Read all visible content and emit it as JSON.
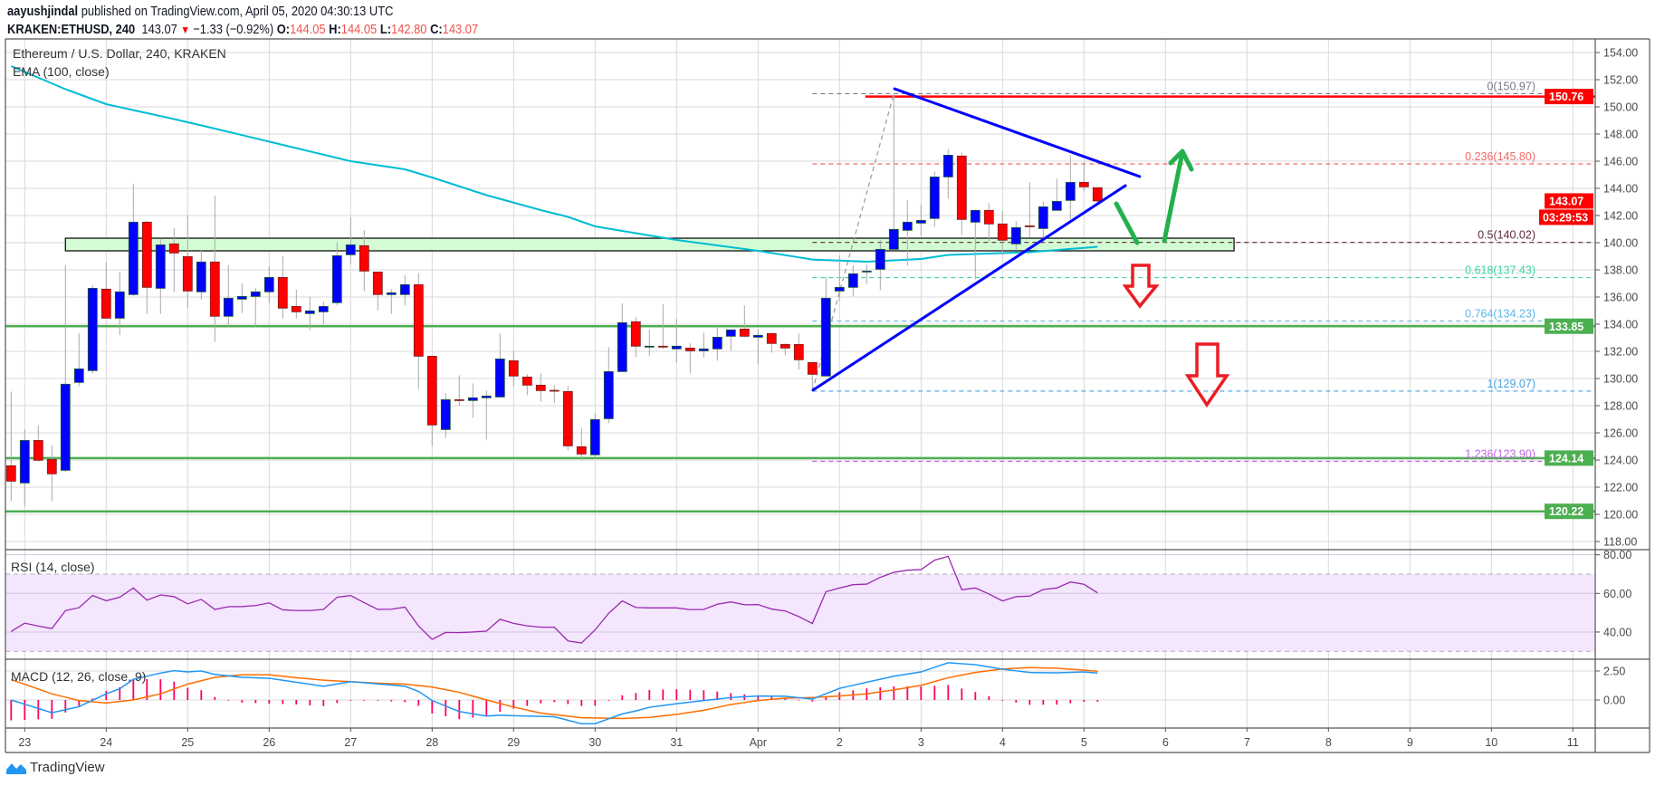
{
  "header": {
    "author": "aayushjindal",
    "published": "published on TradingView.com, April 05, 2020 04:30:13 UTC",
    "symbol": "KRAKEN:ETHUSD, 240",
    "last": "143.07",
    "direction_icon": "triangle-down-icon",
    "change": "−1.33 (−0.92%)",
    "open_label": "O:",
    "open": "144.05",
    "high_label": "H:",
    "high": "144.05",
    "low_label": "L:",
    "low": "142.80",
    "close_label": "C:",
    "close": "143.07"
  },
  "legend": {
    "title": "Ethereum / U.S. Dollar, 240, KRAKEN",
    "ema": "EMA (100, close)",
    "rsi": "RSI (14, close)",
    "macd": "MACD (12, 26, close, 9)"
  },
  "price_axis": {
    "ticks": [
      "154.00",
      "152.00",
      "150.00",
      "148.00",
      "146.00",
      "144.00",
      "142.00",
      "140.00",
      "138.00",
      "136.00",
      "134.00",
      "132.00",
      "130.00",
      "128.00",
      "126.00",
      "124.00",
      "122.00",
      "120.00",
      "118.00"
    ],
    "badges": [
      {
        "label": "150.76",
        "value": 150.76,
        "color": "#ff0000"
      },
      {
        "label": "143.07",
        "value": 143.07,
        "color": "#ff0000"
      },
      {
        "label": "133.85",
        "value": 133.85,
        "color": "#4caf50"
      },
      {
        "label": "124.14",
        "value": 124.14,
        "color": "#4caf50"
      },
      {
        "label": "120.22",
        "value": 120.22,
        "color": "#4caf50"
      }
    ],
    "countdown": "03:29:53"
  },
  "rsi_axis": [
    "80.00",
    "60.00",
    "40.00"
  ],
  "macd_axis": [
    "2.50",
    "0.00"
  ],
  "time_axis": [
    "23",
    "24",
    "25",
    "26",
    "27",
    "28",
    "29",
    "30",
    "31",
    "Apr",
    "2",
    "3",
    "4",
    "5",
    "6",
    "7",
    "8",
    "9",
    "10",
    "11"
  ],
  "logo": "TradingView",
  "colors": {
    "up": "#0000ff",
    "down": "#ff0000",
    "ema": "#00bcd4",
    "rsi": "#9c27b0",
    "macd": "#2196f3",
    "signal": "#ff6d00",
    "histogram": "#ff0061",
    "support": "#4caf50",
    "resistance": "#ff0000",
    "trendline": "#0000ff",
    "zone": "#d4fcd4",
    "arrow_up": "#22b14c",
    "arrow_down": "#ed1c24"
  },
  "chart_data": {
    "type": "candlestick",
    "symbol": "KRAKEN:ETHUSD",
    "interval_minutes": 240,
    "start": "2020-03-22T20:00Z",
    "ylim": [
      117,
      155
    ],
    "grid": true,
    "candles_ohlc": [
      [
        123.58,
        129.04,
        120.98,
        122.44
      ],
      [
        122.31,
        126.27,
        120.58,
        125.44
      ],
      [
        125.44,
        126.53,
        123.9,
        123.98
      ],
      [
        124.04,
        125.07,
        120.98,
        122.98
      ],
      [
        123.24,
        138.33,
        123.1,
        129.58
      ],
      [
        129.71,
        133.33,
        129.42,
        130.71
      ],
      [
        130.58,
        136.87,
        130.36,
        136.64
      ],
      [
        136.58,
        138.53,
        134.4,
        134.44
      ],
      [
        134.44,
        137.87,
        133.2,
        136.38
      ],
      [
        136.18,
        144.33,
        136.1,
        141.51
      ],
      [
        141.51,
        141.6,
        134.76,
        136.71
      ],
      [
        136.64,
        140.31,
        134.76,
        139.84
      ],
      [
        139.91,
        141.07,
        136.36,
        139.24
      ],
      [
        138.98,
        142.04,
        135.2,
        136.44
      ],
      [
        136.38,
        139.44,
        135.82,
        138.58
      ],
      [
        138.58,
        143.47,
        132.69,
        134.58
      ],
      [
        134.58,
        138.33,
        133.76,
        135.91
      ],
      [
        135.84,
        137.0,
        134.82,
        136.04
      ],
      [
        136.04,
        136.67,
        133.76,
        136.38
      ],
      [
        136.38,
        138.27,
        135.53,
        137.44
      ],
      [
        137.44,
        139.0,
        134.42,
        135.18
      ],
      [
        135.31,
        136.53,
        134.42,
        134.91
      ],
      [
        134.78,
        136.02,
        133.56,
        134.98
      ],
      [
        134.91,
        135.67,
        134.02,
        135.31
      ],
      [
        135.58,
        140.04,
        135.38,
        139.04
      ],
      [
        139.11,
        141.87,
        138.42,
        139.84
      ],
      [
        139.78,
        140.93,
        136.42,
        137.91
      ],
      [
        137.84,
        137.84,
        135.02,
        136.18
      ],
      [
        136.18,
        136.58,
        134.76,
        136.31
      ],
      [
        136.18,
        137.6,
        135.38,
        136.91
      ],
      [
        136.91,
        137.78,
        129.24,
        131.64
      ],
      [
        131.64,
        131.64,
        125.04,
        126.58
      ],
      [
        126.24,
        128.91,
        125.64,
        128.44
      ],
      [
        128.44,
        130.24,
        127.98,
        128.38
      ],
      [
        128.38,
        129.64,
        127.11,
        128.58
      ],
      [
        128.58,
        129.11,
        125.51,
        128.71
      ],
      [
        128.64,
        133.31,
        128.6,
        131.44
      ],
      [
        131.31,
        132.04,
        129.44,
        130.18
      ],
      [
        130.11,
        130.31,
        128.78,
        129.51
      ],
      [
        129.51,
        130.38,
        128.31,
        129.11
      ],
      [
        129.13,
        129.51,
        128.18,
        129.09
      ],
      [
        129.04,
        129.44,
        124.71,
        125.04
      ],
      [
        124.98,
        126.38,
        123.98,
        124.44
      ],
      [
        124.38,
        127.44,
        124.09,
        126.98
      ],
      [
        127.04,
        132.31,
        126.71,
        130.51
      ],
      [
        130.51,
        135.53,
        130.5,
        134.11
      ],
      [
        134.18,
        134.51,
        131.58,
        132.38
      ],
      [
        132.31,
        133.6,
        131.64,
        132.38
      ],
      [
        132.38,
        135.47,
        132.18,
        132.31
      ],
      [
        132.18,
        134.38,
        131.18,
        132.38
      ],
      [
        132.24,
        132.58,
        130.38,
        132.04
      ],
      [
        132.04,
        133.38,
        131.51,
        132.18
      ],
      [
        132.18,
        133.84,
        131.31,
        133.04
      ],
      [
        133.11,
        133.6,
        132.04,
        133.58
      ],
      [
        133.64,
        135.38,
        133.04,
        133.11
      ],
      [
        133.04,
        133.58,
        131.04,
        133.18
      ],
      [
        133.31,
        133.38,
        131.91,
        132.58
      ],
      [
        132.51,
        132.58,
        131.71,
        132.24
      ],
      [
        132.51,
        133.31,
        130.64,
        131.38
      ],
      [
        131.18,
        131.18,
        129.07,
        130.31
      ],
      [
        130.18,
        137.44,
        130.18,
        135.91
      ],
      [
        136.44,
        139.04,
        135.71,
        136.71
      ],
      [
        136.71,
        138.31,
        136.04,
        137.71
      ],
      [
        137.84,
        138.38,
        136.98,
        137.91
      ],
      [
        138.04,
        140.18,
        136.51,
        139.51
      ],
      [
        139.51,
        150.97,
        139.5,
        140.98
      ],
      [
        140.91,
        143.11,
        138.31,
        141.51
      ],
      [
        141.44,
        142.8,
        140.51,
        141.64
      ],
      [
        141.78,
        145.24,
        141.16,
        144.84
      ],
      [
        144.84,
        146.91,
        143.24,
        146.44
      ],
      [
        146.38,
        146.64,
        140.58,
        141.71
      ],
      [
        141.51,
        142.44,
        137.31,
        142.38
      ],
      [
        142.38,
        142.91,
        140.04,
        141.38
      ],
      [
        141.38,
        142.31,
        139.11,
        140.18
      ],
      [
        139.91,
        141.58,
        139.51,
        141.11
      ],
      [
        141.24,
        144.44,
        140.38,
        141.2
      ],
      [
        141.04,
        143.04,
        140.38,
        142.64
      ],
      [
        142.38,
        144.71,
        142.38,
        143.04
      ],
      [
        143.11,
        146.44,
        141.71,
        144.44
      ],
      [
        144.44,
        145.91,
        143.78,
        144.11
      ],
      [
        144.05,
        144.05,
        142.8,
        143.07
      ]
    ],
    "ema100": [
      [
        "2020-03-22T20:00Z",
        153.0
      ],
      [
        "2020-03-23T12:00Z",
        151.3
      ],
      [
        "2020-03-24T00:00Z",
        150.2
      ],
      [
        "2020-03-24T20:00Z",
        149.1
      ],
      [
        "2020-03-25T08:00Z",
        148.4
      ],
      [
        "2020-03-26T04:00Z",
        147.2
      ],
      [
        "2020-03-27T00:00Z",
        146.0
      ],
      [
        "2020-03-27T16:00Z",
        145.4
      ],
      [
        "2020-03-28T00:00Z",
        144.8
      ],
      [
        "2020-03-28T16:00Z",
        143.5
      ],
      [
        "2020-03-29T08:00Z",
        142.4
      ],
      [
        "2020-03-29T16:00Z",
        141.9
      ],
      [
        "2020-03-30T00:00Z",
        141.2
      ],
      [
        "2020-03-31T00:00Z",
        140.2
      ],
      [
        "2020-04-01T00:00Z",
        139.4
      ],
      [
        "2020-04-01T16:00Z",
        138.76
      ],
      [
        "2020-04-02T08:00Z",
        138.6
      ],
      [
        "2020-04-03T00:00Z",
        138.8
      ],
      [
        "2020-04-03T08:00Z",
        139.1
      ],
      [
        "2020-04-04T08:00Z",
        139.3
      ],
      [
        "2020-04-05T04:00Z",
        139.7
      ]
    ],
    "rsi14": [
      40.3,
      44.6,
      43.1,
      41.8,
      51.1,
      52.6,
      58.9,
      56.2,
      58.0,
      62.8,
      56.5,
      59.2,
      58.3,
      54.6,
      56.9,
      51.7,
      53.1,
      53.2,
      53.7,
      55.1,
      51.5,
      51.1,
      51.1,
      51.7,
      58.0,
      58.9,
      55.2,
      51.7,
      51.8,
      52.9,
      43.1,
      36.2,
      39.8,
      39.7,
      40.0,
      40.5,
      46.6,
      44.5,
      43.2,
      42.5,
      42.5,
      35.4,
      34.3,
      41.1,
      49.7,
      56.1,
      52.7,
      52.5,
      52.5,
      52.5,
      51.6,
      51.7,
      54.4,
      55.6,
      54.1,
      54.2,
      51.9,
      50.9,
      48.0,
      44.4,
      60.9,
      62.8,
      64.5,
      64.8,
      68.3,
      70.9,
      72.0,
      72.3,
      77.2,
      79.2,
      61.9,
      62.8,
      59.7,
      56.1,
      58.3,
      58.6,
      62.0,
      62.8,
      65.9,
      64.7,
      60.3
    ],
    "rsi_bands": {
      "upper": 70,
      "lower": 30
    },
    "rsi_ylim": [
      25,
      82
    ],
    "macd": [
      [
        "2020-03-22T20:00Z",
        0
      ],
      [
        "2020-03-23T08:00Z",
        -1.1
      ],
      [
        "2020-03-23T16:00Z",
        -0.58
      ],
      [
        "2020-03-24T00:00Z",
        0.53
      ],
      [
        "2020-03-24T04:00Z",
        0.97
      ],
      [
        "2020-03-24T08:00Z",
        1.79
      ],
      [
        "2020-03-24T16:00Z",
        2.32
      ],
      [
        "2020-03-24T20:00Z",
        2.53
      ],
      [
        "2020-03-25T00:00Z",
        2.42
      ],
      [
        "2020-03-25T04:00Z",
        2.5
      ],
      [
        "2020-03-25T08:00Z",
        2.21
      ],
      [
        "2020-03-25T16:00Z",
        1.95
      ],
      [
        "2020-03-26T00:00Z",
        1.87
      ],
      [
        "2020-03-26T08:00Z",
        1.53
      ],
      [
        "2020-03-26T16:00Z",
        1.18
      ],
      [
        "2020-03-27T00:00Z",
        1.58
      ],
      [
        "2020-03-27T08:00Z",
        1.39
      ],
      [
        "2020-03-27T16:00Z",
        1.18
      ],
      [
        "2020-03-27T20:00Z",
        0.74
      ],
      [
        "2020-03-28T00:00Z",
        -0.05
      ],
      [
        "2020-03-28T08:00Z",
        -1.0
      ],
      [
        "2020-03-28T16:00Z",
        -1.39
      ],
      [
        "2020-03-28T20:00Z",
        -1.32
      ],
      [
        "2020-03-29T04:00Z",
        -1.39
      ],
      [
        "2020-03-29T12:00Z",
        -1.45
      ],
      [
        "2020-03-29T20:00Z",
        -2.05
      ],
      [
        "2020-03-30T00:00Z",
        -2.05
      ],
      [
        "2020-03-30T08:00Z",
        -1.2
      ],
      [
        "2020-03-30T12:00Z",
        -0.95
      ],
      [
        "2020-03-30T16:00Z",
        -0.63
      ],
      [
        "2020-03-31T00:00Z",
        -0.32
      ],
      [
        "2020-03-31T08:00Z",
        -0.05
      ],
      [
        "2020-03-31T16:00Z",
        0.21
      ],
      [
        "2020-04-01T00:00Z",
        0.34
      ],
      [
        "2020-04-01T08:00Z",
        0.32
      ],
      [
        "2020-04-01T16:00Z",
        0.08
      ],
      [
        "2020-04-02T00:00Z",
        1.0
      ],
      [
        "2020-04-02T08:00Z",
        1.53
      ],
      [
        "2020-04-02T16:00Z",
        2.05
      ],
      [
        "2020-04-03T00:00Z",
        2.42
      ],
      [
        "2020-04-03T08:00Z",
        3.21
      ],
      [
        "2020-04-03T16:00Z",
        3.05
      ],
      [
        "2020-04-04T00:00Z",
        2.66
      ],
      [
        "2020-04-04T08:00Z",
        2.37
      ],
      [
        "2020-04-04T16:00Z",
        2.34
      ],
      [
        "2020-04-05T00:00Z",
        2.42
      ],
      [
        "2020-04-05T04:00Z",
        2.32
      ]
    ],
    "signal": [
      [
        "2020-03-22T20:00Z",
        1.76
      ],
      [
        "2020-03-23T08:00Z",
        0.53
      ],
      [
        "2020-03-23T16:00Z",
        -0.05
      ],
      [
        "2020-03-24T00:00Z",
        -0.26
      ],
      [
        "2020-03-24T08:00Z",
        0
      ],
      [
        "2020-03-24T16:00Z",
        0.53
      ],
      [
        "2020-03-25T00:00Z",
        1.37
      ],
      [
        "2020-03-25T08:00Z",
        1.95
      ],
      [
        "2020-03-25T16:00Z",
        2.18
      ],
      [
        "2020-03-26T00:00Z",
        2.18
      ],
      [
        "2020-03-26T08:00Z",
        1.92
      ],
      [
        "2020-03-26T16:00Z",
        1.71
      ],
      [
        "2020-03-27T00:00Z",
        1.58
      ],
      [
        "2020-03-27T08:00Z",
        1.45
      ],
      [
        "2020-03-27T16:00Z",
        1.37
      ],
      [
        "2020-03-28T00:00Z",
        1.11
      ],
      [
        "2020-03-28T08:00Z",
        0.66
      ],
      [
        "2020-03-28T16:00Z",
        0
      ],
      [
        "2020-03-29T00:00Z",
        -0.61
      ],
      [
        "2020-03-29T08:00Z",
        -1.13
      ],
      [
        "2020-03-29T20:00Z",
        -1.53
      ],
      [
        "2020-03-30T08:00Z",
        -1.6
      ],
      [
        "2020-03-30T16:00Z",
        -1.5
      ],
      [
        "2020-03-31T00:00Z",
        -1.24
      ],
      [
        "2020-03-31T08:00Z",
        -0.89
      ],
      [
        "2020-03-31T16:00Z",
        -0.39
      ],
      [
        "2020-04-01T00:00Z",
        -0.05
      ],
      [
        "2020-04-01T08:00Z",
        0.16
      ],
      [
        "2020-04-01T16:00Z",
        0.21
      ],
      [
        "2020-04-02T00:00Z",
        0.34
      ],
      [
        "2020-04-02T08:00Z",
        0.53
      ],
      [
        "2020-04-02T16:00Z",
        0.87
      ],
      [
        "2020-04-03T00:00Z",
        1.26
      ],
      [
        "2020-04-03T08:00Z",
        1.92
      ],
      [
        "2020-04-03T16:00Z",
        2.37
      ],
      [
        "2020-04-04T00:00Z",
        2.68
      ],
      [
        "2020-04-04T08:00Z",
        2.79
      ],
      [
        "2020-04-04T16:00Z",
        2.74
      ],
      [
        "2020-04-05T00:00Z",
        2.58
      ],
      [
        "2020-04-05T04:00Z",
        2.47
      ]
    ],
    "fibonacci": {
      "from": [
        "2020-04-01T16:00Z",
        129.07
      ],
      "to": [
        "2020-04-02T16:00Z",
        150.97
      ],
      "levels": [
        {
          "label": "0(150.97)",
          "price": 150.97,
          "color": "#787b86"
        },
        {
          "label": "0.236(145.80)",
          "price": 145.8,
          "color": "#f06a6a"
        },
        {
          "label": "0.5(140.02)",
          "price": 140.02,
          "color": "#5d2a3c"
        },
        {
          "label": "0.618(137.43)",
          "price": 137.43,
          "color": "#3fd3a0"
        },
        {
          "label": "0.764(134.23)",
          "price": 134.23,
          "color": "#5eb7e8"
        },
        {
          "label": "1(129.07)",
          "price": 129.07,
          "color": "#4aa3df"
        },
        {
          "label": "1.236(123.90)",
          "price": 123.9,
          "color": "#c266e0"
        }
      ]
    },
    "horizontal_lines": [
      {
        "price": 150.76,
        "start": "2020-04-02T07:36Z",
        "color": "#ff0000"
      },
      {
        "price": 133.85,
        "color": "#4caf50"
      },
      {
        "price": 124.14,
        "color": "#4caf50"
      },
      {
        "price": 120.22,
        "color": "#4caf50"
      }
    ],
    "zone": {
      "top": 140.33,
      "bottom": 139.4,
      "start": "2020-03-23T12:00Z",
      "end": "2020-04-06T20:12Z"
    },
    "trendlines": [
      {
        "from": [
          "2020-04-02T16:12Z",
          151.33
        ],
        "to": [
          "2020-04-05T16:24Z",
          144.87
        ]
      },
      {
        "from": [
          "2020-04-01T16:12Z",
          129.15
        ],
        "to": [
          "2020-04-05T12:12Z",
          144.2
        ]
      }
    ]
  }
}
